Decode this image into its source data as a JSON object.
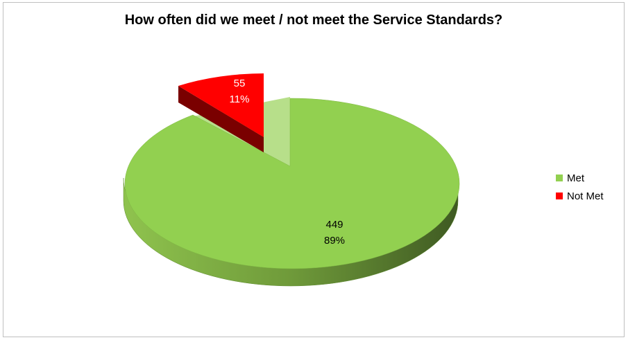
{
  "chart_data": {
    "type": "pie",
    "title": "How often did we meet / not meet the Service Standards?",
    "categories": [
      "Met",
      "Not Met"
    ],
    "values": [
      449,
      55
    ],
    "percent_labels": [
      "89%",
      "11%"
    ],
    "colors": [
      "#92d050",
      "#ff0000"
    ],
    "exploded": "Not Met",
    "style": "3d",
    "legend_position": "right"
  }
}
